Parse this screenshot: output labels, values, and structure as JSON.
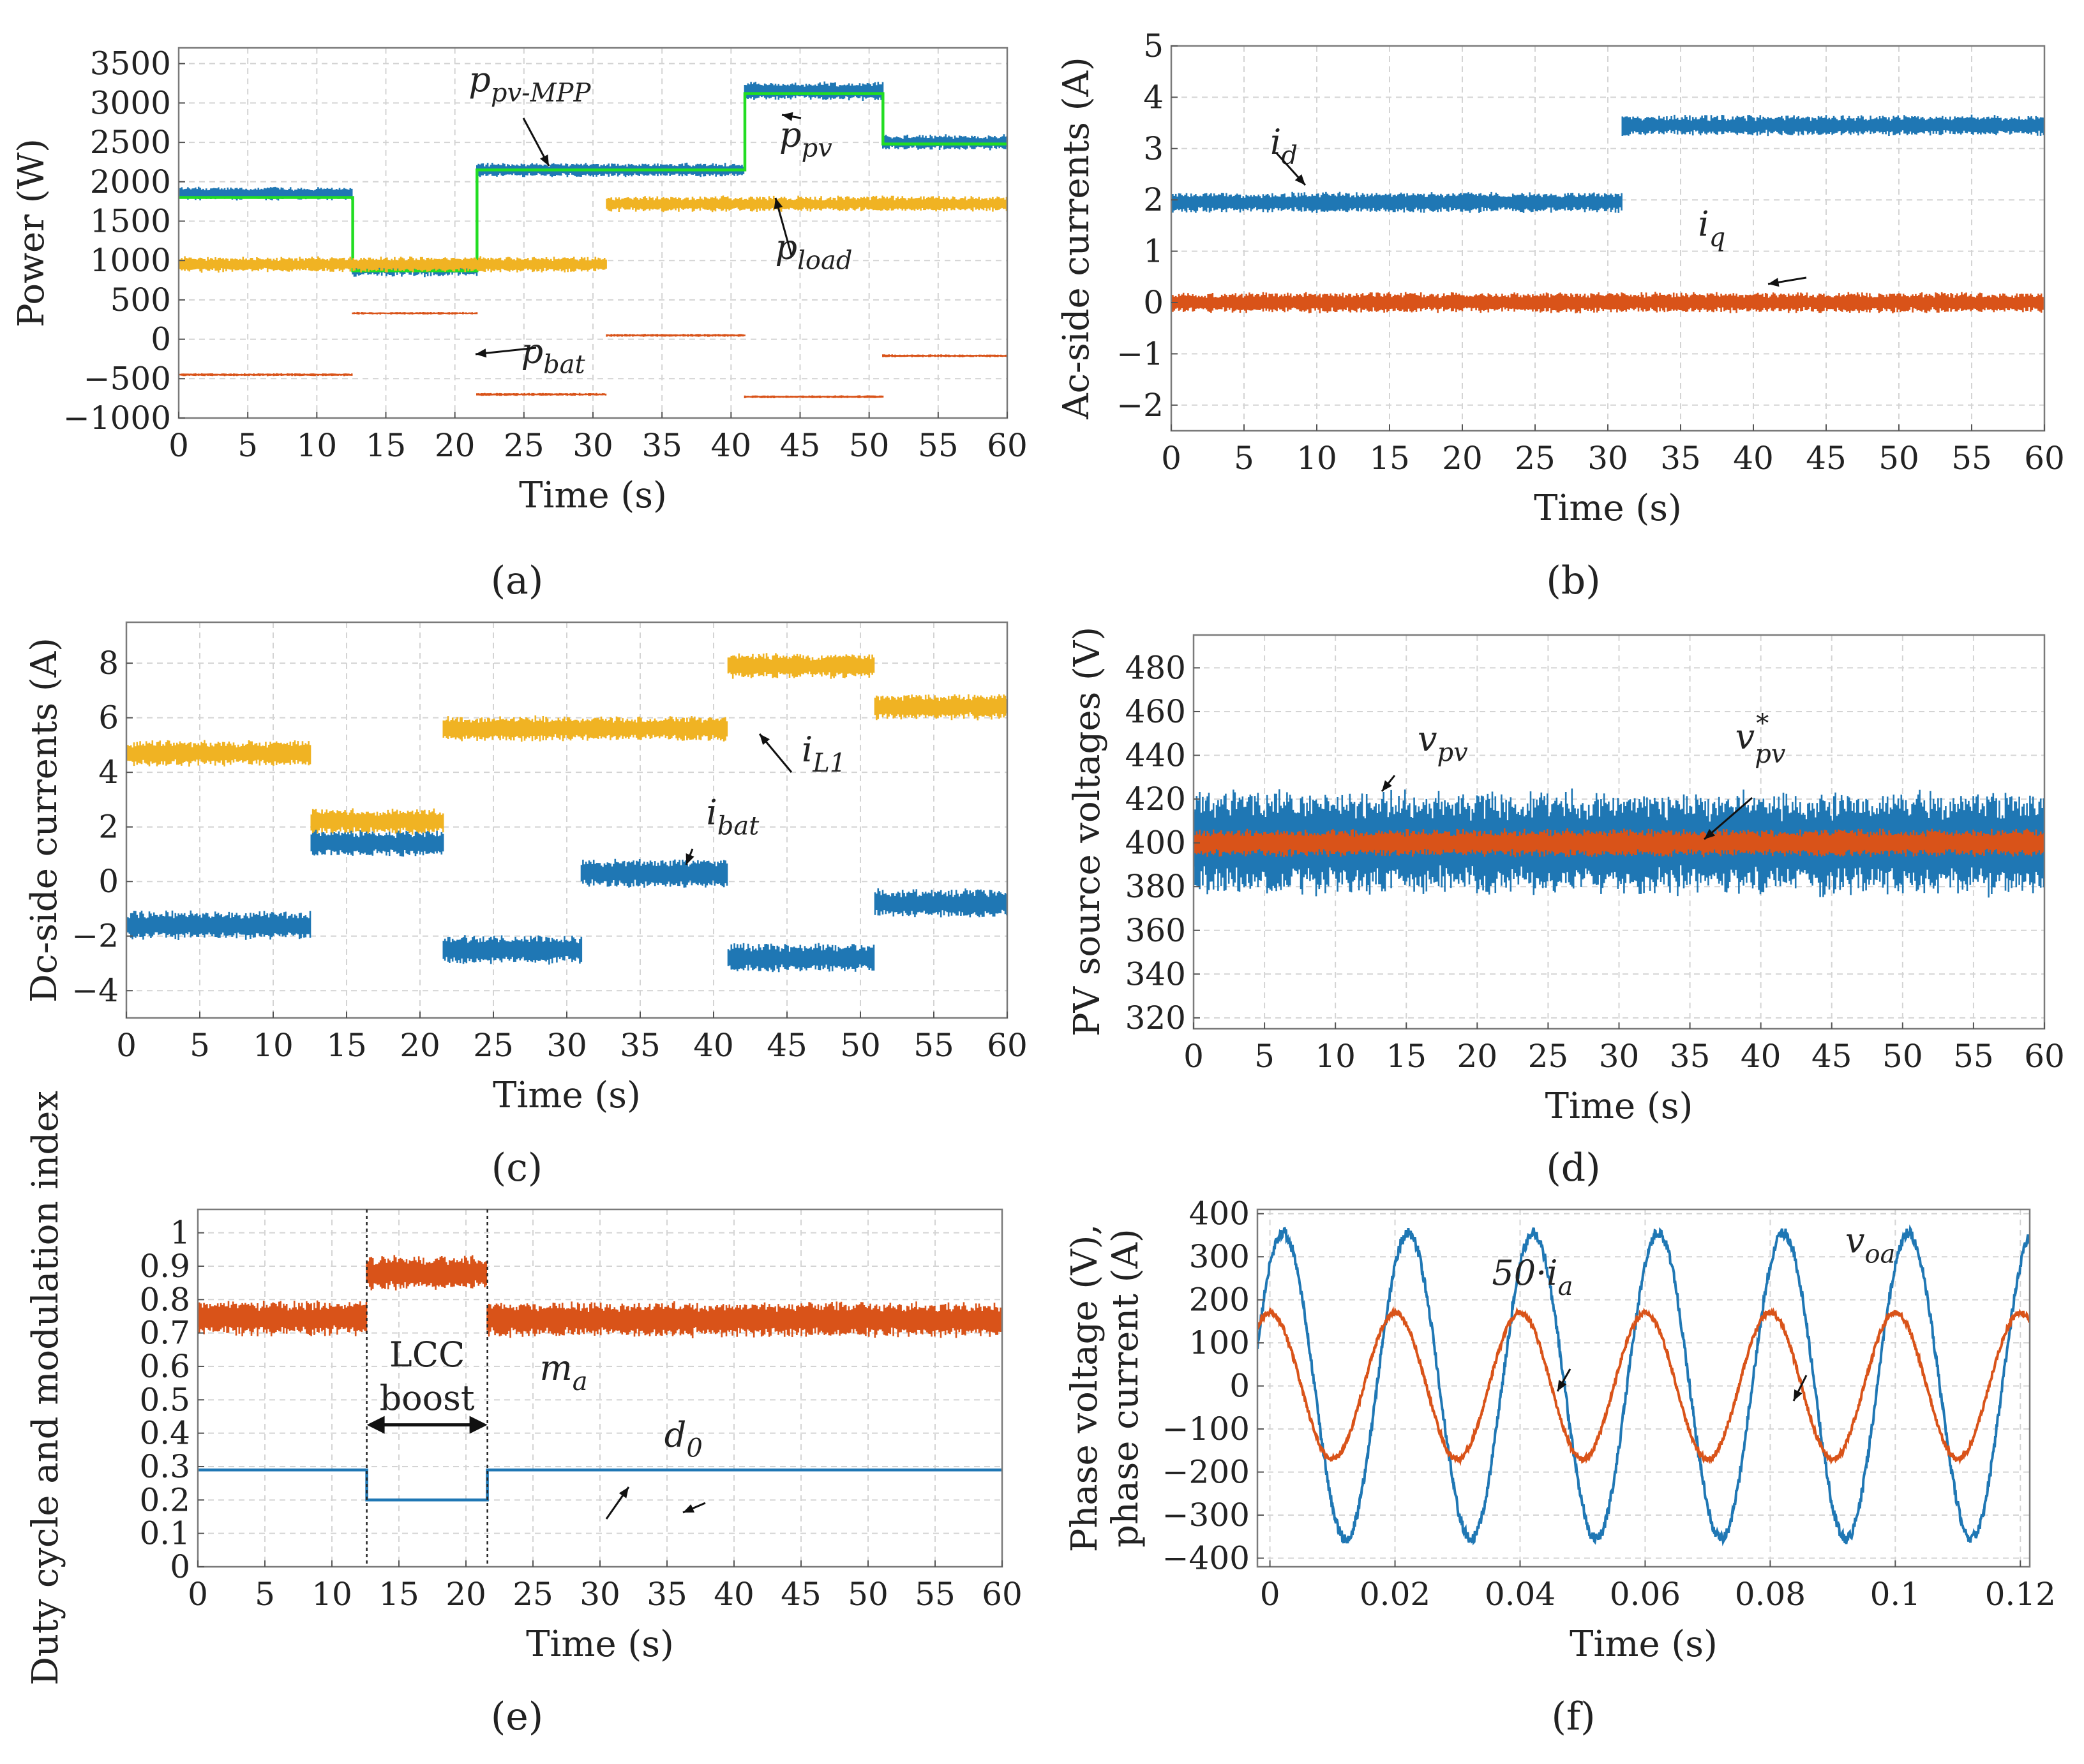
{
  "chart_data": [
    {
      "id": "a",
      "type": "line",
      "panel_label": "(a)",
      "xlabel": "Time (s)",
      "ylabel": "Power (W)",
      "xlim": [
        0,
        60
      ],
      "ylim": [
        -1000,
        3700
      ],
      "xticks": [
        0,
        5,
        10,
        15,
        20,
        25,
        30,
        35,
        40,
        45,
        50,
        55,
        60
      ],
      "yticks": [
        -1000,
        -500,
        0,
        500,
        1000,
        1500,
        2000,
        2500,
        3000,
        3500
      ],
      "yticklabels": [
        "−1000",
        "−500",
        "0",
        "500",
        "1000",
        "1500",
        "2000",
        "2500",
        "3000",
        "3500"
      ],
      "series": [
        {
          "name": "p_pv",
          "color": "#1f77b4",
          "noise": true,
          "segments": [
            [
              0,
              12.6,
              1850,
              160
            ],
            [
              12.6,
              21.6,
              900,
              200
            ],
            [
              21.6,
              41,
              2150,
              170
            ],
            [
              41,
              51,
              3150,
              230
            ],
            [
              51,
              60,
              2500,
              190
            ]
          ]
        },
        {
          "name": "p_pv-MPP",
          "color": "#22dd22",
          "noise": false,
          "segments": [
            [
              0,
              12.6,
              1800
            ],
            [
              12.6,
              21.6,
              870
            ],
            [
              21.6,
              41,
              2150
            ],
            [
              41,
              51,
              3120
            ],
            [
              51,
              60,
              2480
            ]
          ]
        },
        {
          "name": "p_load",
          "color": "#f0b323",
          "noise": true,
          "segments": [
            [
              0,
              31,
              950,
              190
            ],
            [
              31,
              60,
              1720,
              190
            ]
          ]
        },
        {
          "name": "p_bat",
          "color": "#d95319",
          "noise": true,
          "segments": [
            [
              0,
              12.6,
              -450,
              35
            ],
            [
              12.6,
              21.6,
              330,
              30
            ],
            [
              21.6,
              31,
              -700,
              35
            ],
            [
              31,
              41,
              50,
              35
            ],
            [
              41,
              51,
              -730,
              35
            ],
            [
              51,
              60,
              -210,
              35
            ]
          ]
        }
      ],
      "annotations": [
        {
          "base": "p",
          "sub": "pv-MPP",
          "x": 21,
          "y": 3150
        },
        {
          "base": "p",
          "sub": "pv",
          "x": 43.5,
          "y": 2450
        },
        {
          "base": "p",
          "sub": "load",
          "x": 43.2,
          "y": 1020
        },
        {
          "base": "p",
          "sub": "bat",
          "x": 24.8,
          "y": -300
        }
      ]
    },
    {
      "id": "b",
      "type": "line",
      "panel_label": "(b)",
      "xlabel": "Time (s)",
      "ylabel": "Ac-side currents (A)",
      "xlim": [
        0,
        60
      ],
      "ylim": [
        -2.5,
        5
      ],
      "xticks": [
        0,
        5,
        10,
        15,
        20,
        25,
        30,
        35,
        40,
        45,
        50,
        55,
        60
      ],
      "yticks": [
        -2,
        -1,
        0,
        1,
        2,
        3,
        4,
        5
      ],
      "yticklabels": [
        "−2",
        "−1",
        "0",
        "1",
        "2",
        "3",
        "4",
        "5"
      ],
      "series": [
        {
          "name": "i_d",
          "color": "#1f77b4",
          "noise": true,
          "segments": [
            [
              0,
              31,
              1.95,
              0.38
            ],
            [
              31,
              60,
              3.45,
              0.38
            ]
          ]
        },
        {
          "name": "i_q",
          "color": "#d95319",
          "noise": true,
          "segments": [
            [
              0,
              60,
              0.0,
              0.38
            ]
          ]
        }
      ],
      "annotations": [
        {
          "base": "i",
          "sub": "d",
          "x": 6.8,
          "y": 2.9
        },
        {
          "base": "i",
          "sub": "q",
          "x": 36.2,
          "y": 1.3
        }
      ]
    },
    {
      "id": "c",
      "type": "line",
      "panel_label": "(c)",
      "xlabel": "Time (s)",
      "ylabel": "Dc-side currents (A)",
      "xlim": [
        0,
        60
      ],
      "ylim": [
        -5,
        9.5
      ],
      "xticks": [
        0,
        5,
        10,
        15,
        20,
        25,
        30,
        35,
        40,
        45,
        50,
        55,
        60
      ],
      "yticks": [
        -4,
        -2,
        0,
        2,
        4,
        6,
        8
      ],
      "yticklabels": [
        "−4",
        "−2",
        "0",
        "2",
        "4",
        "6",
        "8"
      ],
      "series": [
        {
          "name": "i_L1",
          "color": "#f0b323",
          "noise": true,
          "segments": [
            [
              0,
              12.6,
              4.7,
              0.9
            ],
            [
              12.6,
              21.6,
              2.2,
              0.9
            ],
            [
              21.6,
              41,
              5.6,
              0.9
            ],
            [
              41,
              51,
              7.9,
              0.9
            ],
            [
              51,
              60,
              6.4,
              0.9
            ]
          ]
        },
        {
          "name": "i_bat",
          "color": "#1f77b4",
          "noise": true,
          "segments": [
            [
              0,
              12.6,
              -1.6,
              1.0
            ],
            [
              12.6,
              21.6,
              1.4,
              0.9
            ],
            [
              21.6,
              31,
              -2.5,
              1.0
            ],
            [
              31,
              41,
              0.3,
              1.0
            ],
            [
              41,
              51,
              -2.8,
              1.0
            ],
            [
              51,
              60,
              -0.8,
              1.0
            ]
          ]
        }
      ],
      "annotations": [
        {
          "base": "i",
          "sub": "L1",
          "x": 46,
          "y": 4.4
        },
        {
          "base": "i",
          "sub": "bat",
          "x": 39.5,
          "y": 2.1
        }
      ]
    },
    {
      "id": "d",
      "type": "line",
      "panel_label": "(d)",
      "xlabel": "Time (s)",
      "ylabel": "PV source voltages (V)",
      "xlim": [
        0,
        60
      ],
      "ylim": [
        315,
        495
      ],
      "xticks": [
        0,
        5,
        10,
        15,
        20,
        25,
        30,
        35,
        40,
        45,
        50,
        55,
        60
      ],
      "yticks": [
        320,
        340,
        360,
        380,
        400,
        420,
        440,
        460,
        480
      ],
      "yticklabels": [
        "320",
        "340",
        "360",
        "380",
        "400",
        "420",
        "440",
        "460",
        "480"
      ],
      "series": [
        {
          "name": "v_pv",
          "color": "#1f77b4",
          "noise": true,
          "segments": [
            [
              0,
              60,
              400,
              45
            ]
          ]
        },
        {
          "name": "v_pv*",
          "color": "#d95319",
          "noise": true,
          "segments": [
            [
              0,
              60,
              400,
              12
            ]
          ]
        }
      ],
      "annotations": [
        {
          "base": "v",
          "sub": "pv",
          "x": 15.8,
          "y": 442
        },
        {
          "base": "v",
          "sub": "pv",
          "sup": "*",
          "x": 38.2,
          "y": 443
        }
      ]
    },
    {
      "id": "e",
      "type": "line",
      "panel_label": "(e)",
      "xlabel": "Time (s)",
      "ylabel": "Duty cycle and modulation index",
      "xlim": [
        0,
        60
      ],
      "ylim": [
        0,
        1.07
      ],
      "xticks": [
        0,
        5,
        10,
        15,
        20,
        25,
        30,
        35,
        40,
        45,
        50,
        55,
        60
      ],
      "yticks": [
        0,
        0.1,
        0.2,
        0.3,
        0.4,
        0.5,
        0.6,
        0.7,
        0.8,
        0.9,
        1
      ],
      "yticklabels": [
        "0",
        "0.1",
        "0.2",
        "0.3",
        "0.4",
        "0.5",
        "0.6",
        "0.7",
        "0.8",
        "0.9",
        "1"
      ],
      "series": [
        {
          "name": "m_a",
          "color": "#d95319",
          "noise": true,
          "segments": [
            [
              0,
              12.6,
              0.745,
              0.1
            ],
            [
              12.6,
              21.6,
              0.88,
              0.1
            ],
            [
              21.6,
              60,
              0.74,
              0.1
            ]
          ]
        },
        {
          "name": "d_0",
          "color": "#1f77b4",
          "noise": false,
          "segments": [
            [
              0,
              12.6,
              0.29
            ],
            [
              12.6,
              21.6,
              0.2
            ],
            [
              21.6,
              60,
              0.29
            ]
          ]
        }
      ],
      "annotations": [
        {
          "base": "m",
          "sub": "a",
          "x": 25.5,
          "y": 0.56
        },
        {
          "base": "d",
          "sub": "0",
          "x": 34.8,
          "y": 0.36
        }
      ],
      "text_annotations": [
        "LCC",
        "boost"
      ]
    },
    {
      "id": "f",
      "type": "line",
      "panel_label": "(f)",
      "xlabel": "Time (s)",
      "ylabel": [
        "Phase voltage (V),",
        "phase current (A)"
      ],
      "xlim": [
        -0.002,
        0.1215
      ],
      "ylim": [
        -420,
        410
      ],
      "xticks": [
        0,
        0.02,
        0.04,
        0.06,
        0.08,
        0.1,
        0.12
      ],
      "yticks": [
        -400,
        -300,
        -200,
        -100,
        0,
        100,
        200,
        300,
        400
      ],
      "yticklabels": [
        "−400",
        "−300",
        "−200",
        "−100",
        "0",
        "100",
        "200",
        "300",
        "400"
      ],
      "series": [
        {
          "name": "v_oa",
          "color": "#1f77b4",
          "amplitude": 355,
          "frequency_hz": 50,
          "phase_deg": 52
        },
        {
          "name": "50·i_a",
          "color": "#d95319",
          "amplitude": 170,
          "frequency_hz": 50,
          "phase_deg": 90
        }
      ],
      "annotations": [
        {
          "base": "50·i",
          "sub": "a",
          "x": 0.0355,
          "y": 235
        },
        {
          "base": "v",
          "sub": "oa",
          "x": 0.092,
          "y": 310
        }
      ]
    }
  ]
}
